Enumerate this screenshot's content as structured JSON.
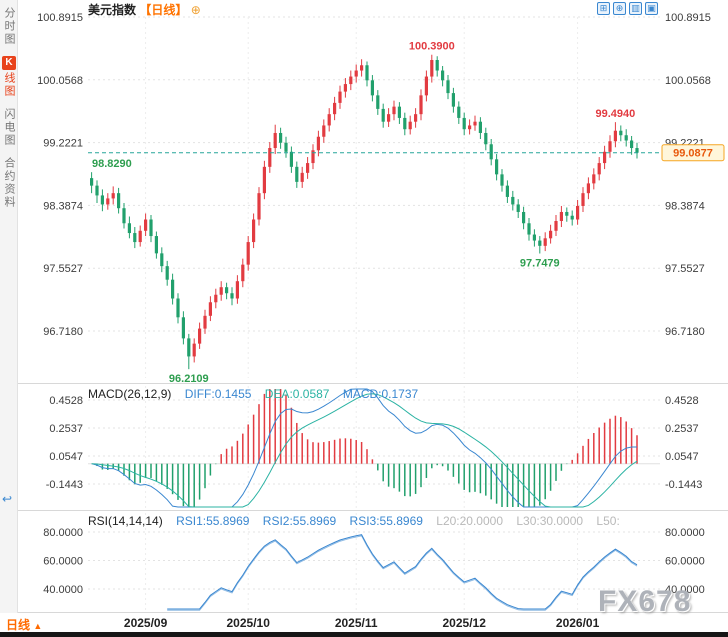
{
  "header": {
    "symbol": "美元指数",
    "period": "【日线】",
    "add_icon": "⊕"
  },
  "toolbar": {
    "icons": [
      {
        "name": "pan",
        "glyph": "⊞"
      },
      {
        "name": "zoom-in",
        "glyph": "⊕"
      },
      {
        "name": "chart-style",
        "glyph": "▥"
      },
      {
        "name": "fullscreen",
        "glyph": "▣"
      }
    ]
  },
  "sidebar": {
    "items": [
      "分时图",
      "K线图",
      "闪电图",
      "合约资料"
    ],
    "active_index": 1,
    "active_chip": "K",
    "active_rest": "线图",
    "collapse_icon": "↩"
  },
  "price_tag": {
    "value": "99.0877"
  },
  "watermark": "FX678",
  "bottom": {
    "period_label": "日线",
    "arrow": "▲"
  },
  "colors": {
    "up": "#e23b41",
    "down": "#21a06c",
    "diff_line": "#3a87d0",
    "dea_line": "#2bb3a3",
    "rsi_line": "#3a87d0",
    "current_line": "#26a69a",
    "ann_red": "#e23b41",
    "ann_green": "#2e9e4f",
    "accent_orange": "#ff6a00",
    "grid": "#e3e3e3"
  },
  "chart_data": [
    {
      "type": "candlestick",
      "title": "美元指数 日线",
      "ohlc_format": [
        "open",
        "high",
        "low",
        "close"
      ],
      "y_axis": [
        100.8915,
        100.0568,
        99.2221,
        98.3874,
        97.5527,
        96.718
      ],
      "x_ticks": [
        {
          "label": "2025/09",
          "index": 10
        },
        {
          "label": "2025/10",
          "index": 29
        },
        {
          "label": "2025/11",
          "index": 49
        },
        {
          "label": "2025/12",
          "index": 69
        },
        {
          "label": "2026/01",
          "index": 90
        }
      ],
      "current_price": 99.0877,
      "annotations": [
        {
          "text": "98.8290",
          "index": 0,
          "price": 98.829,
          "pos": "above",
          "color": "green"
        },
        {
          "text": "96.2109",
          "index": 18,
          "price": 96.2109,
          "pos": "below",
          "color": "green"
        },
        {
          "text": "100.3900",
          "index": 63,
          "price": 100.39,
          "pos": "above",
          "color": "red"
        },
        {
          "text": "97.7479",
          "index": 83,
          "price": 97.7479,
          "pos": "below",
          "color": "green"
        },
        {
          "text": "99.4940",
          "index": 97,
          "price": 99.494,
          "pos": "above",
          "color": "red"
        }
      ],
      "candles": [
        [
          98.75,
          98.829,
          98.55,
          98.65
        ],
        [
          98.65,
          98.72,
          98.42,
          98.52
        ],
        [
          98.52,
          98.6,
          98.31,
          98.4
        ],
        [
          98.4,
          98.55,
          98.33,
          98.48
        ],
        [
          98.48,
          98.64,
          98.4,
          98.55
        ],
        [
          98.55,
          98.62,
          98.28,
          98.35
        ],
        [
          98.35,
          98.42,
          98.08,
          98.15
        ],
        [
          98.15,
          98.24,
          97.95,
          98.02
        ],
        [
          98.02,
          98.1,
          97.82,
          97.9
        ],
        [
          97.9,
          98.12,
          97.84,
          98.05
        ],
        [
          98.05,
          98.28,
          97.98,
          98.2
        ],
        [
          98.2,
          98.26,
          97.9,
          97.98
        ],
        [
          97.98,
          98.04,
          97.68,
          97.75
        ],
        [
          97.75,
          97.83,
          97.5,
          97.58
        ],
        [
          97.58,
          97.65,
          97.32,
          97.4
        ],
        [
          97.4,
          97.48,
          97.07,
          97.15
        ],
        [
          97.15,
          97.22,
          96.82,
          96.9
        ],
        [
          96.9,
          96.98,
          96.54,
          96.62
        ],
        [
          96.62,
          96.68,
          96.2109,
          96.38
        ],
        [
          96.38,
          96.62,
          96.3,
          96.55
        ],
        [
          96.55,
          96.83,
          96.48,
          96.75
        ],
        [
          96.75,
          97.0,
          96.68,
          96.92
        ],
        [
          96.92,
          97.18,
          96.85,
          97.1
        ],
        [
          97.1,
          97.28,
          97.02,
          97.2
        ],
        [
          97.2,
          97.38,
          97.12,
          97.3
        ],
        [
          97.3,
          97.36,
          97.14,
          97.22
        ],
        [
          97.22,
          97.3,
          97.06,
          97.15
        ],
        [
          97.15,
          97.46,
          97.08,
          97.38
        ],
        [
          97.38,
          97.68,
          97.3,
          97.6
        ],
        [
          97.6,
          97.98,
          97.52,
          97.9
        ],
        [
          97.9,
          98.28,
          97.82,
          98.2
        ],
        [
          98.2,
          98.63,
          98.12,
          98.55
        ],
        [
          98.55,
          98.98,
          98.47,
          98.9
        ],
        [
          98.9,
          99.23,
          98.82,
          99.15
        ],
        [
          99.15,
          99.46,
          99.07,
          99.35
        ],
        [
          99.35,
          99.42,
          99.14,
          99.22
        ],
        [
          99.22,
          99.3,
          99.02,
          99.1
        ],
        [
          99.1,
          99.17,
          98.82,
          98.9
        ],
        [
          98.9,
          98.97,
          98.62,
          98.7
        ],
        [
          98.7,
          98.9,
          98.62,
          98.82
        ],
        [
          98.82,
          99.03,
          98.74,
          98.95
        ],
        [
          98.95,
          99.2,
          98.87,
          99.12
        ],
        [
          99.12,
          99.38,
          99.04,
          99.3
        ],
        [
          99.3,
          99.53,
          99.22,
          99.45
        ],
        [
          99.45,
          99.68,
          99.37,
          99.6
        ],
        [
          99.6,
          99.83,
          99.52,
          99.75
        ],
        [
          99.75,
          99.98,
          99.67,
          99.9
        ],
        [
          99.9,
          100.08,
          99.82,
          100.0
        ],
        [
          100.0,
          100.18,
          99.92,
          100.1
        ],
        [
          100.1,
          100.26,
          100.02,
          100.18
        ],
        [
          100.18,
          100.33,
          100.1,
          100.25
        ],
        [
          100.25,
          100.3,
          99.97,
          100.05
        ],
        [
          100.05,
          100.12,
          99.77,
          99.85
        ],
        [
          99.85,
          99.92,
          99.59,
          99.67
        ],
        [
          99.67,
          99.74,
          99.42,
          99.5
        ],
        [
          99.5,
          99.68,
          99.43,
          99.6
        ],
        [
          99.6,
          99.78,
          99.52,
          99.7
        ],
        [
          99.7,
          99.76,
          99.47,
          99.55
        ],
        [
          99.55,
          99.62,
          99.32,
          99.4
        ],
        [
          99.4,
          99.58,
          99.33,
          99.5
        ],
        [
          99.5,
          99.68,
          99.42,
          99.6
        ],
        [
          99.6,
          99.93,
          99.52,
          99.85
        ],
        [
          99.85,
          100.18,
          99.77,
          100.1
        ],
        [
          100.1,
          100.39,
          100.02,
          100.32
        ],
        [
          100.32,
          100.37,
          100.1,
          100.18
        ],
        [
          100.18,
          100.24,
          99.97,
          100.05
        ],
        [
          100.05,
          100.12,
          99.8,
          99.88
        ],
        [
          99.88,
          99.95,
          99.62,
          99.7
        ],
        [
          99.7,
          99.77,
          99.47,
          99.55
        ],
        [
          99.55,
          99.62,
          99.32,
          99.4
        ],
        [
          99.4,
          99.53,
          99.33,
          99.45
        ],
        [
          99.45,
          99.58,
          99.38,
          99.5
        ],
        [
          99.5,
          99.56,
          99.27,
          99.35
        ],
        [
          99.35,
          99.42,
          99.12,
          99.2
        ],
        [
          99.2,
          99.27,
          98.92,
          99.0
        ],
        [
          99.0,
          99.07,
          98.72,
          98.8
        ],
        [
          98.8,
          98.87,
          98.57,
          98.65
        ],
        [
          98.65,
          98.72,
          98.42,
          98.5
        ],
        [
          98.5,
          98.58,
          98.32,
          98.4
        ],
        [
          98.4,
          98.47,
          98.22,
          98.3
        ],
        [
          98.3,
          98.37,
          98.07,
          98.15
        ],
        [
          98.15,
          98.22,
          97.92,
          98.0
        ],
        [
          98.0,
          98.07,
          97.84,
          97.92
        ],
        [
          97.92,
          97.98,
          97.7479,
          97.85
        ],
        [
          97.85,
          98.03,
          97.78,
          97.95
        ],
        [
          97.95,
          98.13,
          97.88,
          98.05
        ],
        [
          98.05,
          98.26,
          97.98,
          98.18
        ],
        [
          98.18,
          98.38,
          98.1,
          98.3
        ],
        [
          98.3,
          98.36,
          98.17,
          98.25
        ],
        [
          98.25,
          98.32,
          98.12,
          98.2
        ],
        [
          98.2,
          98.46,
          98.13,
          98.38
        ],
        [
          98.38,
          98.63,
          98.3,
          98.55
        ],
        [
          98.55,
          98.76,
          98.47,
          98.68
        ],
        [
          98.68,
          98.88,
          98.6,
          98.8
        ],
        [
          98.8,
          99.03,
          98.72,
          98.95
        ],
        [
          98.95,
          99.18,
          98.87,
          99.1
        ],
        [
          99.1,
          99.32,
          99.02,
          99.24
        ],
        [
          99.24,
          99.494,
          99.16,
          99.38
        ],
        [
          99.38,
          99.45,
          99.24,
          99.32
        ],
        [
          99.32,
          99.4,
          99.17,
          99.25
        ],
        [
          99.25,
          99.31,
          99.06,
          99.15
        ],
        [
          99.15,
          99.22,
          99.01,
          99.0877
        ]
      ]
    },
    {
      "type": "line",
      "name": "MACD",
      "header": {
        "title": "MACD(26,12,9)",
        "diff": "DIFF:0.1455",
        "dea": "DEA:0.0587",
        "macd": "MACD:0.1737"
      },
      "y_axis": [
        0.4528,
        0.2537,
        0.0547,
        -0.1443
      ],
      "last_values": {
        "diff": 0.1455,
        "dea": 0.0587,
        "macd": 0.1737
      },
      "derived": "series computed from candle closes: DIFF=EMA12-EMA26, DEA=EMA9(DIFF), histogram=2*(DIFF-DEA)"
    },
    {
      "type": "line",
      "name": "RSI",
      "header": {
        "title": "RSI(14,14,14)",
        "rsi1": "RSI1:55.8969",
        "rsi2": "RSI2:55.8969",
        "rsi3": "RSI3:55.8969",
        "l20": "L20:20.0000",
        "l30": "L30:30.0000",
        "l50": "L50:"
      },
      "y_axis": [
        80.0,
        60.0,
        40.0
      ],
      "last_values": {
        "rsi1": 55.8969,
        "rsi2": 55.8969,
        "rsi3": 55.8969
      },
      "derived": "series computed from candle closes with Wilder RSI period 14 (three identical periods)"
    }
  ]
}
